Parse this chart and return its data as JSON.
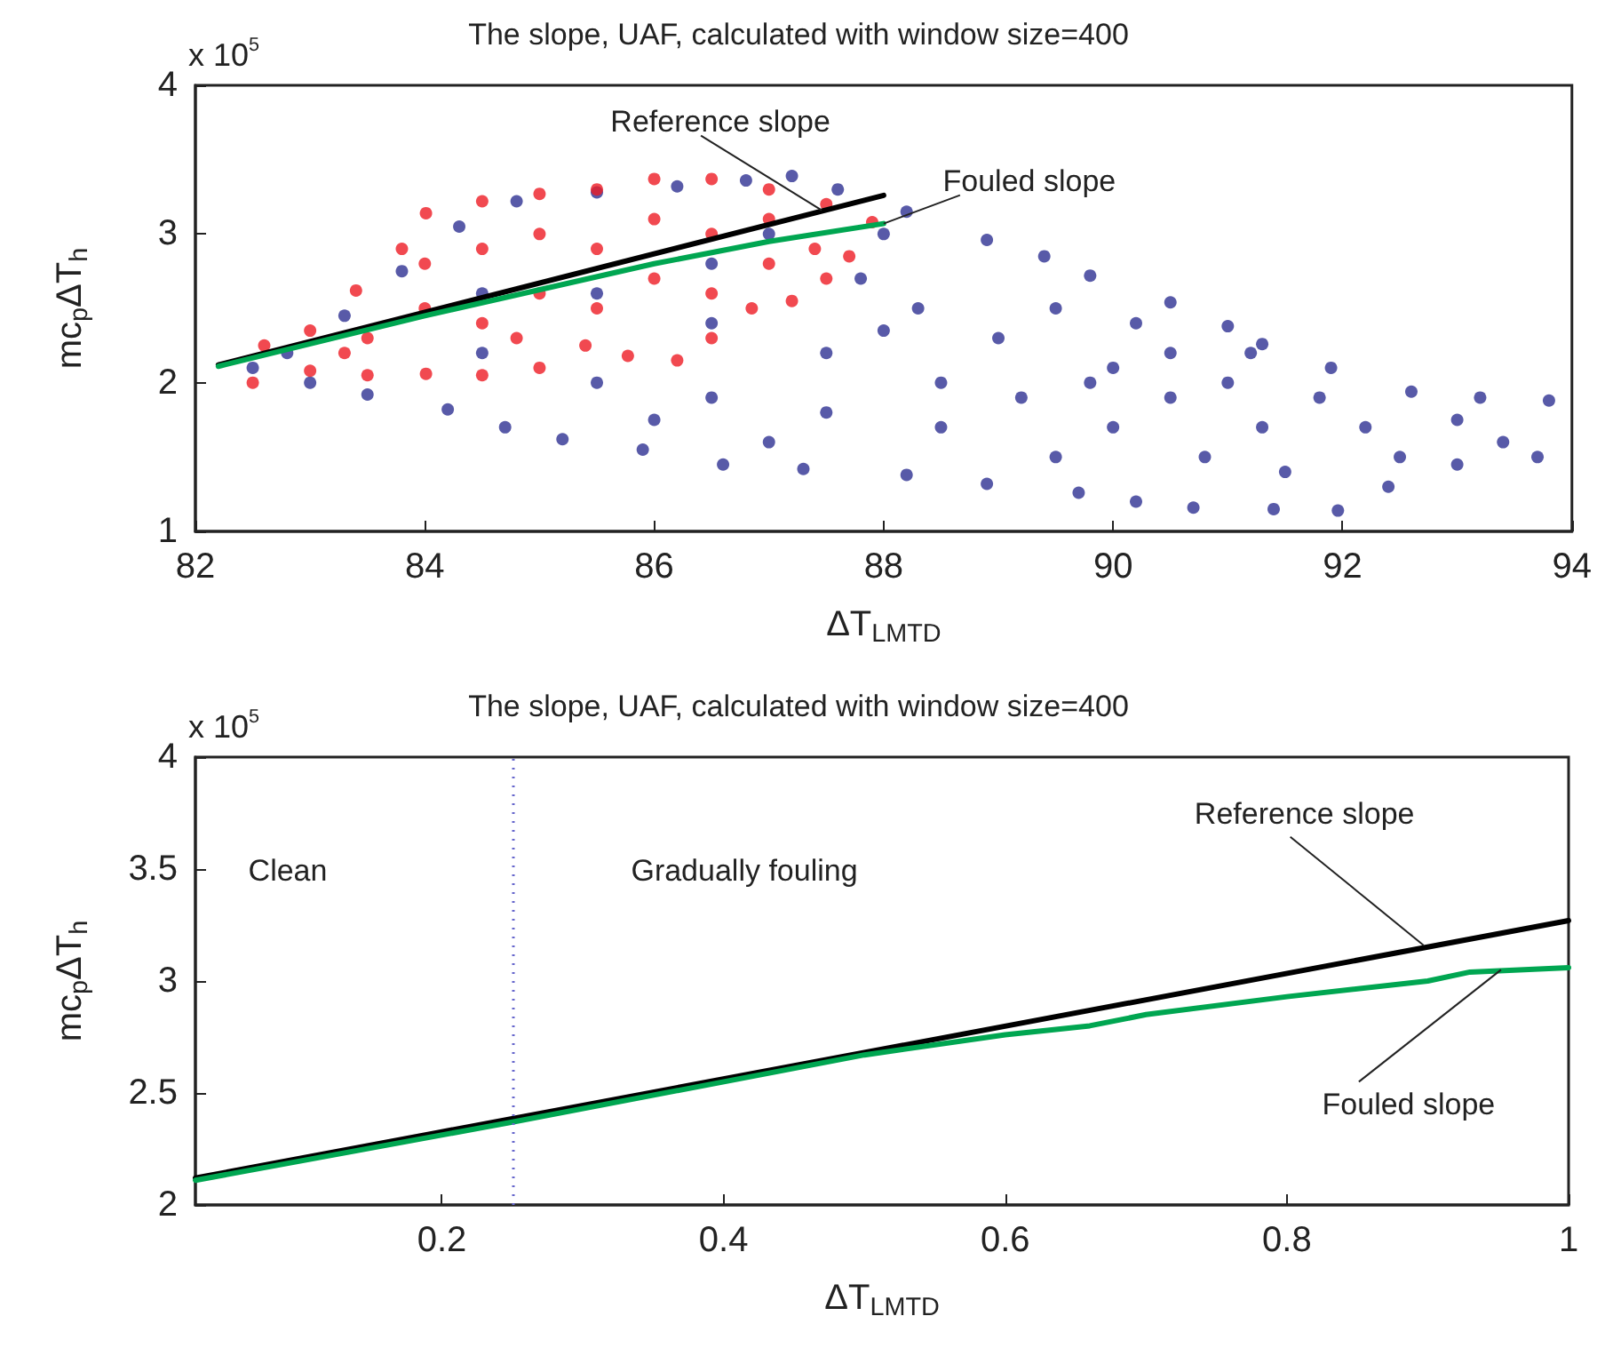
{
  "chart_data": [
    {
      "type": "scatter",
      "title": "The slope, UAF, calculated with window size=400",
      "xlabel": "ΔT$_{LMTD}$",
      "ylabel": "mc$_{p}$ΔT$_{h}$",
      "xlim": [
        82,
        94
      ],
      "xticks": [
        82,
        84,
        86,
        88,
        90,
        92,
        94
      ],
      "ylim": [
        1,
        4
      ],
      "yticks": [
        1,
        2,
        3,
        4
      ],
      "annotations": [
        {
          "text": "Reference slope",
          "x": 87.46,
          "y": 3.16
        },
        {
          "text": "Fouled slope",
          "x": 88,
          "y": 3.07
        },
        "x 10$^{5}$"
      ],
      "series": [
        {
          "color": "#2e3192",
          "marker": "circle",
          "x": [
            82.5,
            82.8,
            83.3,
            83.8,
            84.3,
            84.8,
            85.5,
            86.2,
            86.8,
            87.2,
            87.6,
            88.2,
            88.9,
            89.4,
            89.8,
            90.5,
            91.0,
            91.3,
            91.9,
            92.6,
            93.2,
            93.8,
            93.7,
            93.0,
            92.4,
            91.96,
            91.4,
            90.7,
            90.2,
            89.7,
            88.9,
            88.2,
            87.3,
            86.6,
            85.9,
            85.2,
            84.7,
            84.2,
            83.5,
            83,
            84.5,
            85.5,
            86.5,
            86.5,
            87.5,
            87.5,
            87.8,
            88.3,
            88.5,
            88.5,
            89,
            89.2,
            89.5,
            89.5,
            90,
            90,
            90.5,
            90.5,
            90.8,
            91,
            91.3,
            91.5,
            91.8,
            92.2,
            92.5,
            93,
            93.4,
            88,
            87,
            86.5,
            85.5,
            84.5,
            86,
            87,
            88.0,
            89.8,
            90.2,
            91.2
          ],
          "values": [
            2.1,
            2.2,
            2.45,
            2.75,
            3.05,
            3.22,
            3.28,
            3.32,
            3.36,
            3.39,
            3.3,
            3.15,
            2.96,
            2.85,
            2.72,
            2.54,
            2.38,
            2.26,
            2.1,
            1.94,
            1.9,
            1.88,
            1.5,
            1.45,
            1.3,
            1.14,
            1.15,
            1.16,
            1.2,
            1.26,
            1.32,
            1.38,
            1.42,
            1.45,
            1.55,
            1.62,
            1.7,
            1.82,
            1.92,
            2.0,
            2.2,
            2.0,
            1.9,
            2.4,
            2.2,
            1.8,
            2.7,
            2.5,
            2.0,
            1.7,
            2.3,
            1.9,
            2.5,
            1.5,
            2.1,
            1.7,
            2.2,
            1.9,
            1.5,
            2.0,
            1.7,
            1.4,
            1.9,
            1.7,
            1.5,
            1.75,
            1.6,
            3.0,
            3.0,
            2.8,
            2.6,
            2.6,
            1.75,
            1.6,
            2.35,
            2.0,
            2.4,
            2.2
          ]
        },
        {
          "color": "#ed1c24",
          "marker": "circle",
          "x": [
            82.5,
            82.6,
            83.0,
            83.4,
            83.8,
            84.01,
            84.5,
            85,
            85.5,
            86,
            86.5,
            87,
            87.5,
            87.9,
            87.7,
            87.5,
            87.2,
            86.85,
            86.5,
            86.2,
            85.77,
            85.4,
            85,
            84.5,
            84.01,
            83.5,
            83,
            83.5,
            84,
            84,
            84.5,
            84.5,
            85,
            85,
            85.5,
            85.5,
            86,
            86,
            86.5,
            86.5,
            87,
            87,
            87.4,
            84.8,
            83.3
          ],
          "values": [
            2.0,
            2.25,
            2.35,
            2.62,
            2.9,
            3.14,
            3.22,
            3.27,
            3.3,
            3.37,
            3.37,
            3.3,
            3.2,
            3.08,
            2.85,
            2.7,
            2.55,
            2.5,
            2.3,
            2.15,
            2.18,
            2.25,
            2.1,
            2.05,
            2.06,
            2.05,
            2.08,
            2.3,
            2.5,
            2.8,
            2.4,
            2.9,
            2.6,
            3.0,
            2.5,
            2.9,
            2.7,
            3.1,
            2.6,
            3.0,
            2.8,
            3.1,
            2.9,
            2.3,
            2.2
          ]
        },
        {
          "type": "line",
          "color": "#000000",
          "x": [
            82.2,
            88
          ],
          "values": [
            2.12,
            3.26
          ]
        },
        {
          "type": "line",
          "color": "#00a651",
          "x": [
            82.2,
            84,
            86,
            87,
            88
          ],
          "values": [
            2.11,
            2.45,
            2.8,
            2.95,
            3.07
          ]
        }
      ]
    },
    {
      "type": "line",
      "title": "The slope, UAF, calculated with window size=400",
      "xlabel": "ΔT$_{LMTD}$",
      "ylabel": "mc$_{p}$ΔT$_{h}$",
      "xlim": [
        0.025,
        1
      ],
      "xticks": [
        0.2,
        0.4,
        0.6,
        0.8,
        1
      ],
      "ylim": [
        2,
        4
      ],
      "yticks": [
        2,
        2.5,
        3,
        3.5,
        4
      ],
      "ref_lines": [
        {
          "axis": "x",
          "value": 0.25,
          "color": "#6666cc",
          "line_style": "dotted"
        }
      ],
      "annotations": [
        {
          "text": "Reference slope",
          "x": 0.897,
          "y": 3.16
        },
        {
          "text": "Fouled slope",
          "x": 0.952,
          "y": 3.05
        },
        "Clean",
        "Gradually fouling",
        "x 10$^{5}$"
      ],
      "series": [
        {
          "color": "#000000",
          "x": [
            0.025,
            1
          ],
          "values": [
            2.12,
            3.27
          ]
        },
        {
          "color": "#00a651",
          "x": [
            0.025,
            0.25,
            0.5,
            0.6,
            0.66,
            0.7,
            0.8,
            0.9,
            0.93,
            1
          ],
          "values": [
            2.11,
            2.37,
            2.67,
            2.76,
            2.8,
            2.85,
            2.93,
            3.0,
            3.04,
            3.06
          ]
        }
      ]
    }
  ]
}
